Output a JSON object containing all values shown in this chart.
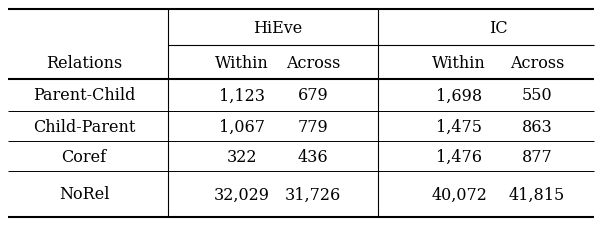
{
  "header_row1": [
    "",
    "HiEve",
    "IC"
  ],
  "header_row2": [
    "Relations",
    "Within",
    "Across",
    "Within",
    "Across"
  ],
  "rows": [
    [
      "Parent-Child",
      "1,123",
      "679",
      "1,698",
      "550"
    ],
    [
      "Child-Parent",
      "1,067",
      "779",
      "1,475",
      "863"
    ],
    [
      "Coref",
      "322",
      "436",
      "1,476",
      "877"
    ],
    [
      "NoRel",
      "32,029",
      "31,726",
      "40,072",
      "41,815"
    ]
  ],
  "background_color": "#ffffff",
  "line_color": "#000000",
  "font_size": 11.5
}
